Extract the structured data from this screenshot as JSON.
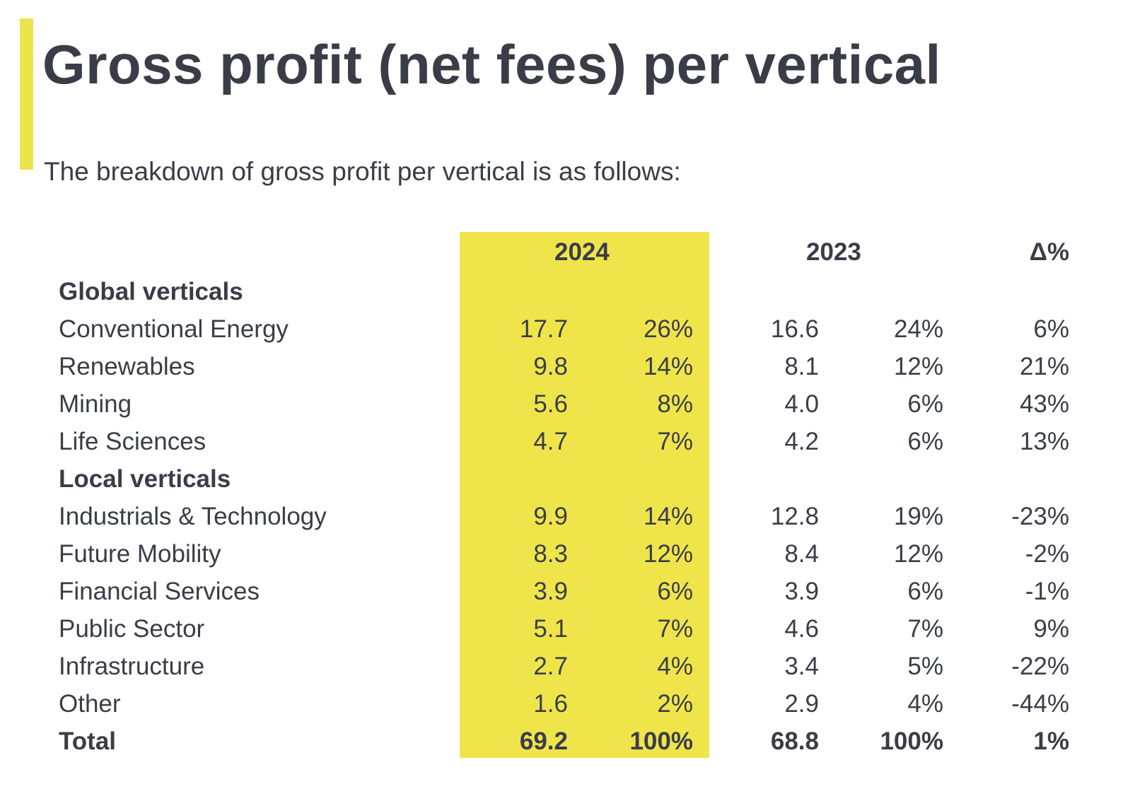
{
  "title": "Gross profit (net fees) per vertical",
  "subtitle": "The breakdown of gross profit per vertical is as follows:",
  "accent_color": "#ede34a",
  "highlight_color": "#efe54b",
  "headers": {
    "y2024": "2024",
    "y2023": "2023",
    "delta": "Δ%"
  },
  "rows": [
    {
      "type": "section",
      "label": "Global verticals"
    },
    {
      "type": "data",
      "label": "Conventional Energy",
      "v2024": "17.7",
      "p2024": "26%",
      "v2023": "16.6",
      "p2023": "24%",
      "delta": "6%"
    },
    {
      "type": "data",
      "label": "Renewables",
      "v2024": "9.8",
      "p2024": "14%",
      "v2023": "8.1",
      "p2023": "12%",
      "delta": "21%"
    },
    {
      "type": "data",
      "label": "Mining",
      "v2024": "5.6",
      "p2024": "8%",
      "v2023": "4.0",
      "p2023": "6%",
      "delta": "43%"
    },
    {
      "type": "data",
      "label": "Life Sciences",
      "v2024": "4.7",
      "p2024": "7%",
      "v2023": "4.2",
      "p2023": "6%",
      "delta": "13%"
    },
    {
      "type": "section",
      "label": "Local verticals"
    },
    {
      "type": "data",
      "label": "Industrials & Technology",
      "v2024": "9.9",
      "p2024": "14%",
      "v2023": "12.8",
      "p2023": "19%",
      "delta": "-23%"
    },
    {
      "type": "data",
      "label": "Future Mobility",
      "v2024": "8.3",
      "p2024": "12%",
      "v2023": "8.4",
      "p2023": "12%",
      "delta": "-2%"
    },
    {
      "type": "data",
      "label": "Financial Services",
      "v2024": "3.9",
      "p2024": "6%",
      "v2023": "3.9",
      "p2023": "6%",
      "delta": "-1%"
    },
    {
      "type": "data",
      "label": "Public Sector",
      "v2024": "5.1",
      "p2024": "7%",
      "v2023": "4.6",
      "p2023": "7%",
      "delta": "9%"
    },
    {
      "type": "data",
      "label": "Infrastructure",
      "v2024": "2.7",
      "p2024": "4%",
      "v2023": "3.4",
      "p2023": "5%",
      "delta": "-22%"
    },
    {
      "type": "data",
      "label": "Other",
      "v2024": "1.6",
      "p2024": "2%",
      "v2023": "2.9",
      "p2023": "4%",
      "delta": "-44%"
    },
    {
      "type": "total",
      "label": "Total",
      "v2024": "69.2",
      "p2024": "100%",
      "v2023": "68.8",
      "p2023": "100%",
      "delta": "1%"
    }
  ]
}
